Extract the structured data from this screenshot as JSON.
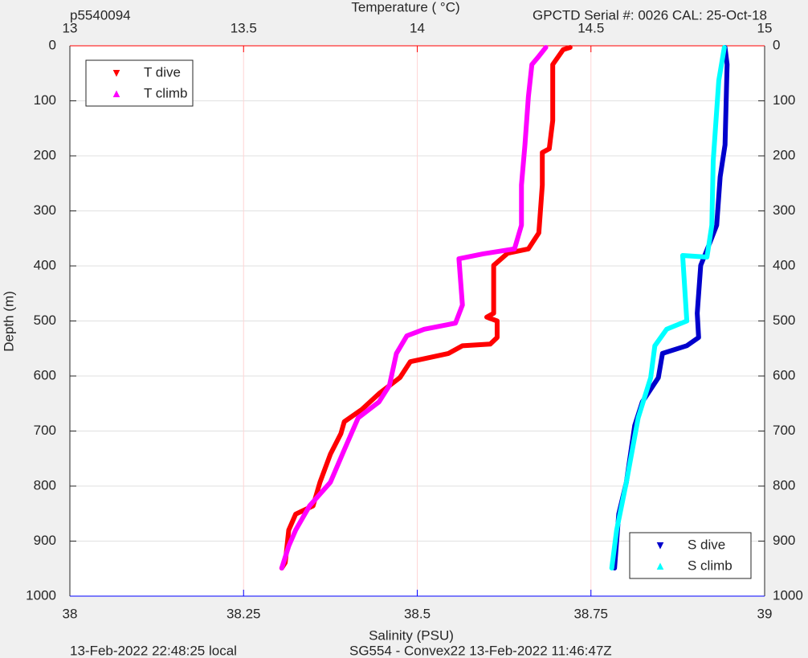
{
  "chart_data": {
    "type": "profile",
    "title": "p5540094",
    "top_label": "Temperature (    °C)",
    "subtitle": "GPCTD Serial #: 0026 CAL: 25-Oct-18",
    "ylabel": "Depth (m)",
    "xlabel": "Salinity (PSU)",
    "footer_left": "13-Feb-2022 22:48:25 local",
    "footer_right": "SG554 - Convex22 13-Feb-2022 11:46:47Z",
    "ylim": [
      0,
      1000
    ],
    "y_reversed": true,
    "yticks": [
      0,
      100,
      200,
      300,
      400,
      500,
      600,
      700,
      800,
      900,
      1000
    ],
    "xlim": [
      38,
      39
    ],
    "xticks": [
      38,
      38.25,
      38.5,
      38.75,
      39
    ],
    "x_color": "#0000ff",
    "x2lim": [
      13,
      15
    ],
    "x2ticks": [
      13,
      13.5,
      14,
      14.5,
      15
    ],
    "x2_color": "#ff0000",
    "grid": true,
    "series": [
      {
        "name": "T dive",
        "color": "#ff0000",
        "marker": "down",
        "axis": "x2",
        "legend": "upper left",
        "x": [
          14.44,
          14.42,
          14.39,
          14.39,
          14.38,
          14.36,
          14.36,
          14.35,
          14.32,
          14.26,
          14.22,
          14.22,
          14.2,
          14.23,
          14.23,
          14.21,
          14.13,
          14.09,
          13.98,
          13.95,
          13.89,
          13.84,
          13.79,
          13.78,
          13.75,
          13.72,
          13.7,
          13.65,
          13.63,
          13.62,
          13.61
        ],
        "values": [
          3,
          7,
          34,
          136,
          187,
          194,
          253,
          340,
          369,
          377,
          399,
          486,
          493,
          500,
          530,
          542,
          545,
          559,
          574,
          603,
          632,
          661,
          683,
          705,
          742,
          793,
          836,
          851,
          880,
          939,
          949
        ]
      },
      {
        "name": "T climb",
        "color": "#ff00ff",
        "marker": "up",
        "axis": "x2",
        "legend": "upper left",
        "x": [
          14.37,
          14.35,
          14.33,
          14.32,
          14.31,
          14.3,
          14.3,
          14.28,
          14.19,
          14.12,
          14.13,
          14.11,
          14.02,
          13.97,
          13.94,
          13.92,
          13.89,
          13.83,
          13.79,
          13.75,
          13.69,
          13.65,
          13.63,
          13.61
        ],
        "values": [
          3,
          19,
          34,
          92,
          180,
          253,
          326,
          369,
          378,
          387,
          471,
          504,
          515,
          527,
          559,
          617,
          647,
          676,
          734,
          793,
          836,
          880,
          909,
          949
        ]
      },
      {
        "name": "S dive",
        "color": "#0000cc",
        "marker": "down",
        "legend": "lower right",
        "x": [
          38.943,
          38.946,
          38.943,
          38.936,
          38.931,
          38.922,
          38.908,
          38.903,
          38.905,
          38.888,
          38.853,
          38.847,
          38.824,
          38.813,
          38.801,
          38.79,
          38.784
        ],
        "values": [
          3,
          34,
          180,
          238,
          326,
          355,
          399,
          486,
          530,
          545,
          559,
          603,
          647,
          690,
          793,
          851,
          949
        ]
      },
      {
        "name": "S climb",
        "color": "#00ffff",
        "marker": "up",
        "legend": "lower right",
        "x": [
          38.942,
          38.934,
          38.926,
          38.924,
          38.917,
          38.882,
          38.888,
          38.859,
          38.842,
          38.836,
          38.818,
          38.801,
          38.787,
          38.78
        ],
        "values": [
          3,
          63,
          209,
          326,
          384,
          381,
          500,
          515,
          545,
          603,
          676,
          793,
          880,
          949
        ]
      }
    ]
  }
}
